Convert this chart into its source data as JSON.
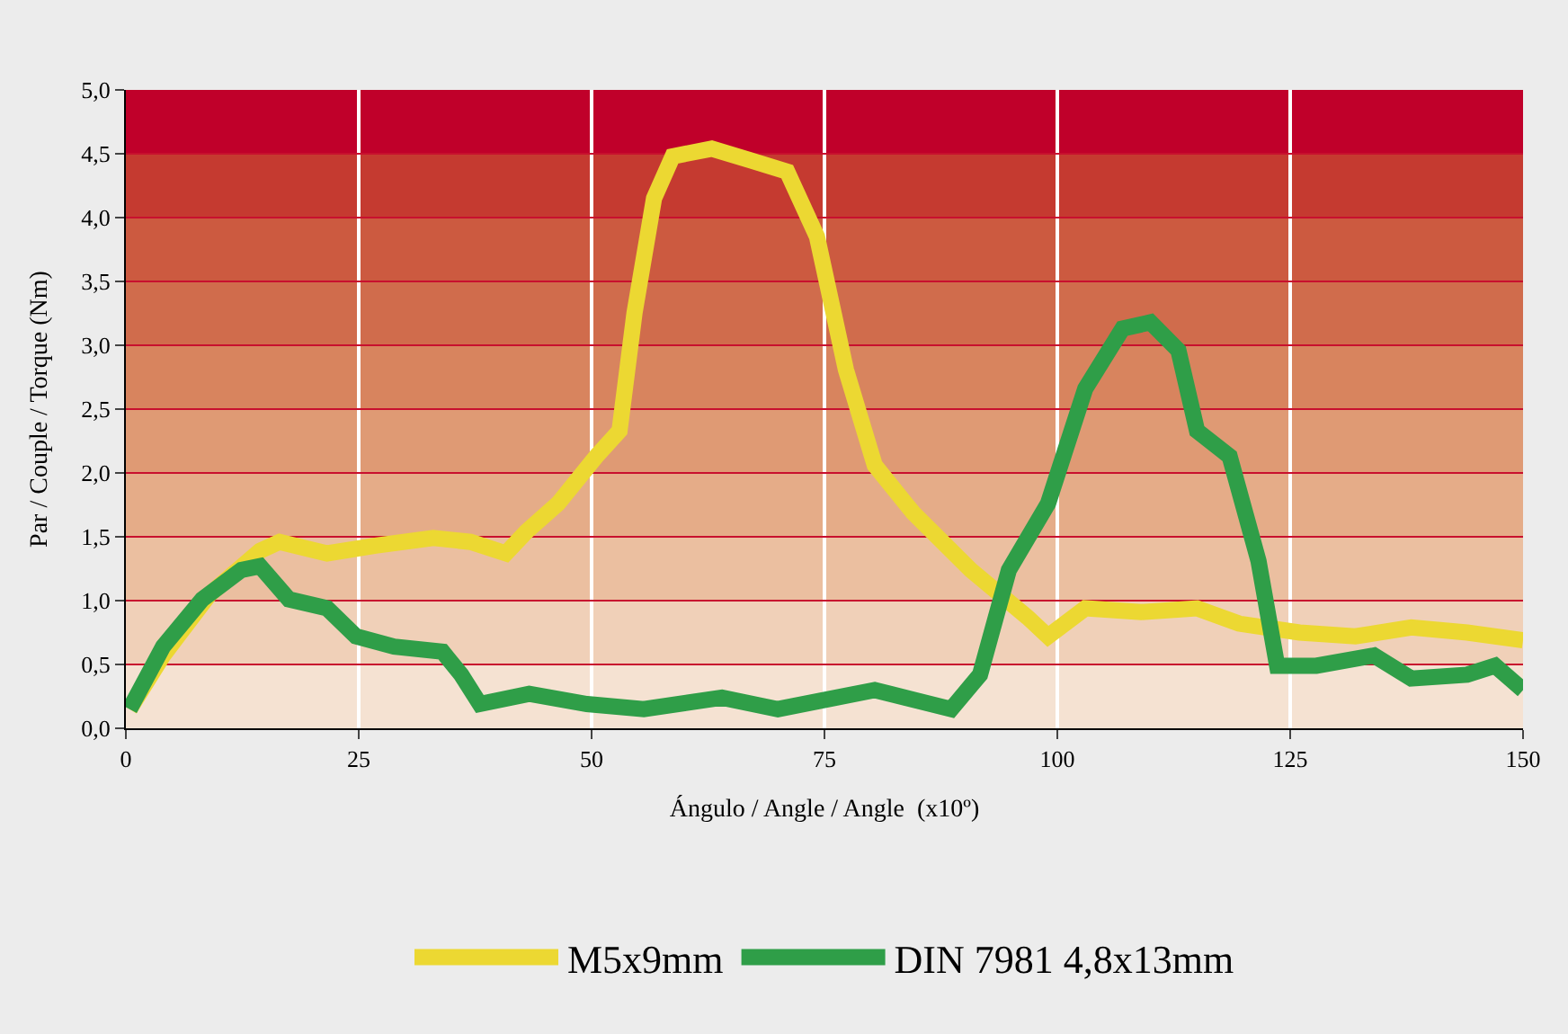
{
  "chart_data": {
    "type": "line",
    "xlabel": "Ángulo / Angle / Angle  (x10º)",
    "ylabel": "Par / Couple / Torque (Nm)",
    "xlim": [
      0,
      150
    ],
    "xticks": [
      0,
      25,
      50,
      75,
      100,
      125,
      150
    ],
    "ylim": [
      0,
      5
    ],
    "yticks": [
      {
        "value": 0,
        "label": "0,0"
      },
      {
        "value": 0.5,
        "label": "0,5"
      },
      {
        "value": 1,
        "label": "1,0"
      },
      {
        "value": 1.5,
        "label": "1,5"
      },
      {
        "value": 2,
        "label": "2,0"
      },
      {
        "value": 2.5,
        "label": "2,5"
      },
      {
        "value": 3,
        "label": "3,0"
      },
      {
        "value": 3.5,
        "label": "3,5"
      },
      {
        "value": 4,
        "label": "4,0"
      },
      {
        "value": 4.5,
        "label": "4,5"
      },
      {
        "value": 5,
        "label": "5,0"
      }
    ],
    "grid": true,
    "legend": "bottom",
    "line_style": "solid",
    "marker": "none",
    "bands": [
      {
        "axis": "y",
        "from": 0,
        "to": 0.5,
        "color": "#f5e2d2"
      },
      {
        "axis": "y",
        "from": 0.5,
        "to": 1,
        "color": "#f0d0b8"
      },
      {
        "axis": "y",
        "from": 1,
        "to": 1.5,
        "color": "#ebbfa0"
      },
      {
        "axis": "y",
        "from": 1.5,
        "to": 2,
        "color": "#e5ac88"
      },
      {
        "axis": "y",
        "from": 2,
        "to": 2.5,
        "color": "#df9a74"
      },
      {
        "axis": "y",
        "from": 2.5,
        "to": 3,
        "color": "#d8845e"
      },
      {
        "axis": "y",
        "from": 3,
        "to": 3.5,
        "color": "#d06c4c"
      },
      {
        "axis": "y",
        "from": 3.5,
        "to": 4,
        "color": "#cc5a40"
      },
      {
        "axis": "y",
        "from": 4,
        "to": 4.5,
        "color": "#c53a30"
      },
      {
        "axis": "y",
        "from": 4.5,
        "to": 5,
        "color": "#c0002a"
      }
    ],
    "series": [
      {
        "name": "M5x9mm",
        "color": "#ecd832",
        "x": [
          0.4,
          4,
          9,
          14.4,
          16.5,
          21.6,
          26.8,
          33,
          37,
          40.8,
          43,
          46.4,
          50.5,
          53,
          54.6,
          56.7,
          58.7,
          62.9,
          67,
          71,
          74.2,
          77.3,
          80.4,
          84.5,
          90.7,
          96.8,
          99,
          103,
          109,
          115,
          119.5,
          126,
          132,
          138,
          144,
          150
        ],
        "values": [
          0.15,
          0.57,
          1.05,
          1.39,
          1.46,
          1.37,
          1.43,
          1.49,
          1.46,
          1.37,
          1.54,
          1.76,
          2.13,
          2.33,
          3.25,
          4.15,
          4.48,
          4.54,
          4.45,
          4.36,
          3.85,
          2.81,
          2.06,
          1.69,
          1.24,
          0.87,
          0.72,
          0.94,
          0.91,
          0.94,
          0.82,
          0.75,
          0.72,
          0.79,
          0.75,
          0.69
        ]
      },
      {
        "name": "DIN 7981 4,8x13mm",
        "color": "#2f9e48",
        "x": [
          0.4,
          4,
          8.2,
          12.4,
          14.4,
          17.5,
          21.6,
          24.7,
          28.8,
          34,
          36,
          38,
          43.3,
          49.5,
          55.6,
          64,
          70,
          80.4,
          88.6,
          91.7,
          94.8,
          99,
          103,
          107,
          110,
          113,
          115,
          118.5,
          121.6,
          123.6,
          127.8,
          134,
          138,
          144,
          147,
          150
        ],
        "values": [
          0.15,
          0.64,
          1.01,
          1.24,
          1.27,
          1.01,
          0.94,
          0.72,
          0.64,
          0.6,
          0.42,
          0.19,
          0.27,
          0.19,
          0.15,
          0.24,
          0.15,
          0.3,
          0.15,
          0.42,
          1.24,
          1.76,
          2.66,
          3.13,
          3.18,
          2.96,
          2.33,
          2.13,
          1.31,
          0.49,
          0.49,
          0.57,
          0.39,
          0.42,
          0.49,
          0.3
        ]
      }
    ]
  }
}
